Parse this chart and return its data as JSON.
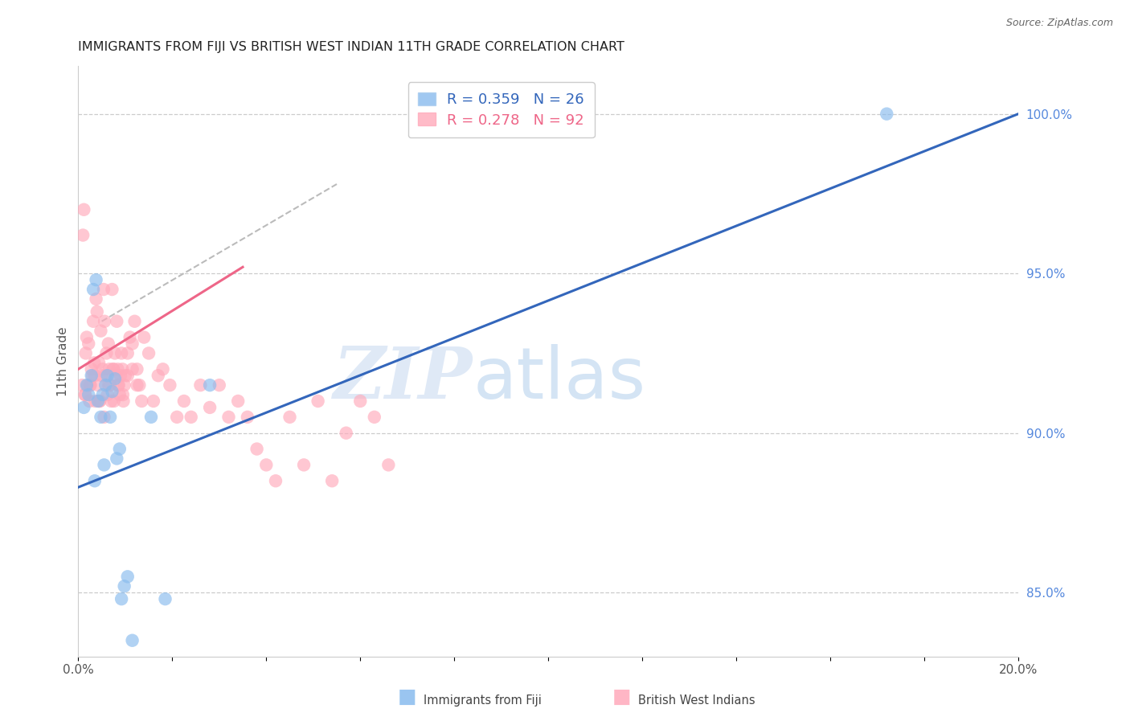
{
  "title": "IMMIGRANTS FROM FIJI VS BRITISH WEST INDIAN 11TH GRADE CORRELATION CHART",
  "source": "Source: ZipAtlas.com",
  "ylabel": "11th Grade",
  "xlim": [
    0.0,
    20.0
  ],
  "ylim": [
    83.0,
    101.5
  ],
  "fiji_color": "#88BBEE",
  "bwi_color": "#FFAABB",
  "fiji_line_color": "#3366BB",
  "bwi_line_color": "#EE6688",
  "dash_color": "#BBBBBB",
  "fiji_R": 0.359,
  "fiji_N": 26,
  "bwi_R": 0.278,
  "bwi_N": 92,
  "fiji_label": "Immigrants from Fiji",
  "bwi_label": "British West Indians",
  "watermark_zip": "ZIP",
  "watermark_atlas": "atlas",
  "background_color": "#ffffff",
  "right_yticks": [
    85.0,
    90.0,
    95.0,
    100.0
  ],
  "legend_text_fiji_color": "#3366BB",
  "legend_text_bwi_color": "#EE6688",
  "fiji_line_x": [
    0.0,
    20.0
  ],
  "fiji_line_y": [
    88.3,
    100.0
  ],
  "bwi_line_x": [
    0.0,
    3.5
  ],
  "bwi_line_y": [
    92.0,
    95.2
  ],
  "dash_line_x": [
    0.5,
    5.5
  ],
  "dash_line_y": [
    93.5,
    97.8
  ],
  "fiji_scatter_x": [
    0.12,
    0.18,
    0.22,
    0.28,
    0.32,
    0.38,
    0.42,
    0.48,
    0.52,
    0.58,
    0.62,
    0.68,
    0.72,
    0.78,
    0.82,
    0.88,
    0.92,
    0.98,
    1.05,
    1.15,
    1.55,
    1.85,
    0.35,
    0.55,
    2.8,
    17.2
  ],
  "fiji_scatter_y": [
    90.8,
    91.5,
    91.2,
    91.8,
    94.5,
    94.8,
    91.0,
    90.5,
    91.2,
    91.5,
    91.8,
    90.5,
    91.3,
    91.7,
    89.2,
    89.5,
    84.8,
    85.2,
    85.5,
    83.5,
    90.5,
    84.8,
    88.5,
    89.0,
    91.5,
    100.0
  ],
  "bwi_scatter_x": [
    0.08,
    0.1,
    0.12,
    0.14,
    0.16,
    0.18,
    0.2,
    0.22,
    0.24,
    0.26,
    0.28,
    0.3,
    0.32,
    0.34,
    0.36,
    0.38,
    0.4,
    0.42,
    0.44,
    0.46,
    0.48,
    0.5,
    0.52,
    0.54,
    0.56,
    0.58,
    0.6,
    0.62,
    0.64,
    0.66,
    0.68,
    0.7,
    0.72,
    0.74,
    0.76,
    0.78,
    0.8,
    0.82,
    0.84,
    0.86,
    0.88,
    0.9,
    0.92,
    0.94,
    0.96,
    0.98,
    1.0,
    1.05,
    1.1,
    1.15,
    1.2,
    1.25,
    1.3,
    1.35,
    1.4,
    1.5,
    1.6,
    1.7,
    1.8,
    1.95,
    2.1,
    2.25,
    2.4,
    2.6,
    2.8,
    3.0,
    3.2,
    3.4,
    3.6,
    3.8,
    4.0,
    4.2,
    4.5,
    4.8,
    5.1,
    5.4,
    5.7,
    6.0,
    6.3,
    6.6,
    0.15,
    0.25,
    0.35,
    0.45,
    0.55,
    0.65,
    0.75,
    0.85,
    0.95,
    1.05,
    1.15,
    1.25
  ],
  "bwi_scatter_y": [
    91.5,
    96.2,
    97.0,
    91.2,
    92.5,
    93.0,
    91.5,
    92.8,
    91.0,
    91.5,
    92.0,
    91.8,
    93.5,
    92.2,
    91.0,
    94.2,
    93.8,
    91.5,
    92.2,
    91.0,
    93.2,
    91.8,
    92.0,
    94.5,
    93.5,
    91.8,
    92.5,
    91.2,
    92.8,
    92.0,
    91.5,
    91.0,
    94.5,
    92.0,
    91.0,
    92.5,
    91.8,
    93.5,
    92.0,
    91.5,
    91.2,
    91.8,
    92.5,
    92.0,
    91.0,
    91.5,
    91.8,
    92.5,
    93.0,
    92.8,
    93.5,
    92.0,
    91.5,
    91.0,
    93.0,
    92.5,
    91.0,
    91.8,
    92.0,
    91.5,
    90.5,
    91.0,
    90.5,
    91.5,
    90.8,
    91.5,
    90.5,
    91.0,
    90.5,
    89.5,
    89.0,
    88.5,
    90.5,
    89.0,
    91.0,
    88.5,
    90.0,
    91.0,
    90.5,
    89.0,
    91.2,
    91.5,
    91.8,
    91.0,
    90.5,
    91.5,
    92.0,
    91.5,
    91.2,
    91.8,
    92.0,
    91.5
  ]
}
